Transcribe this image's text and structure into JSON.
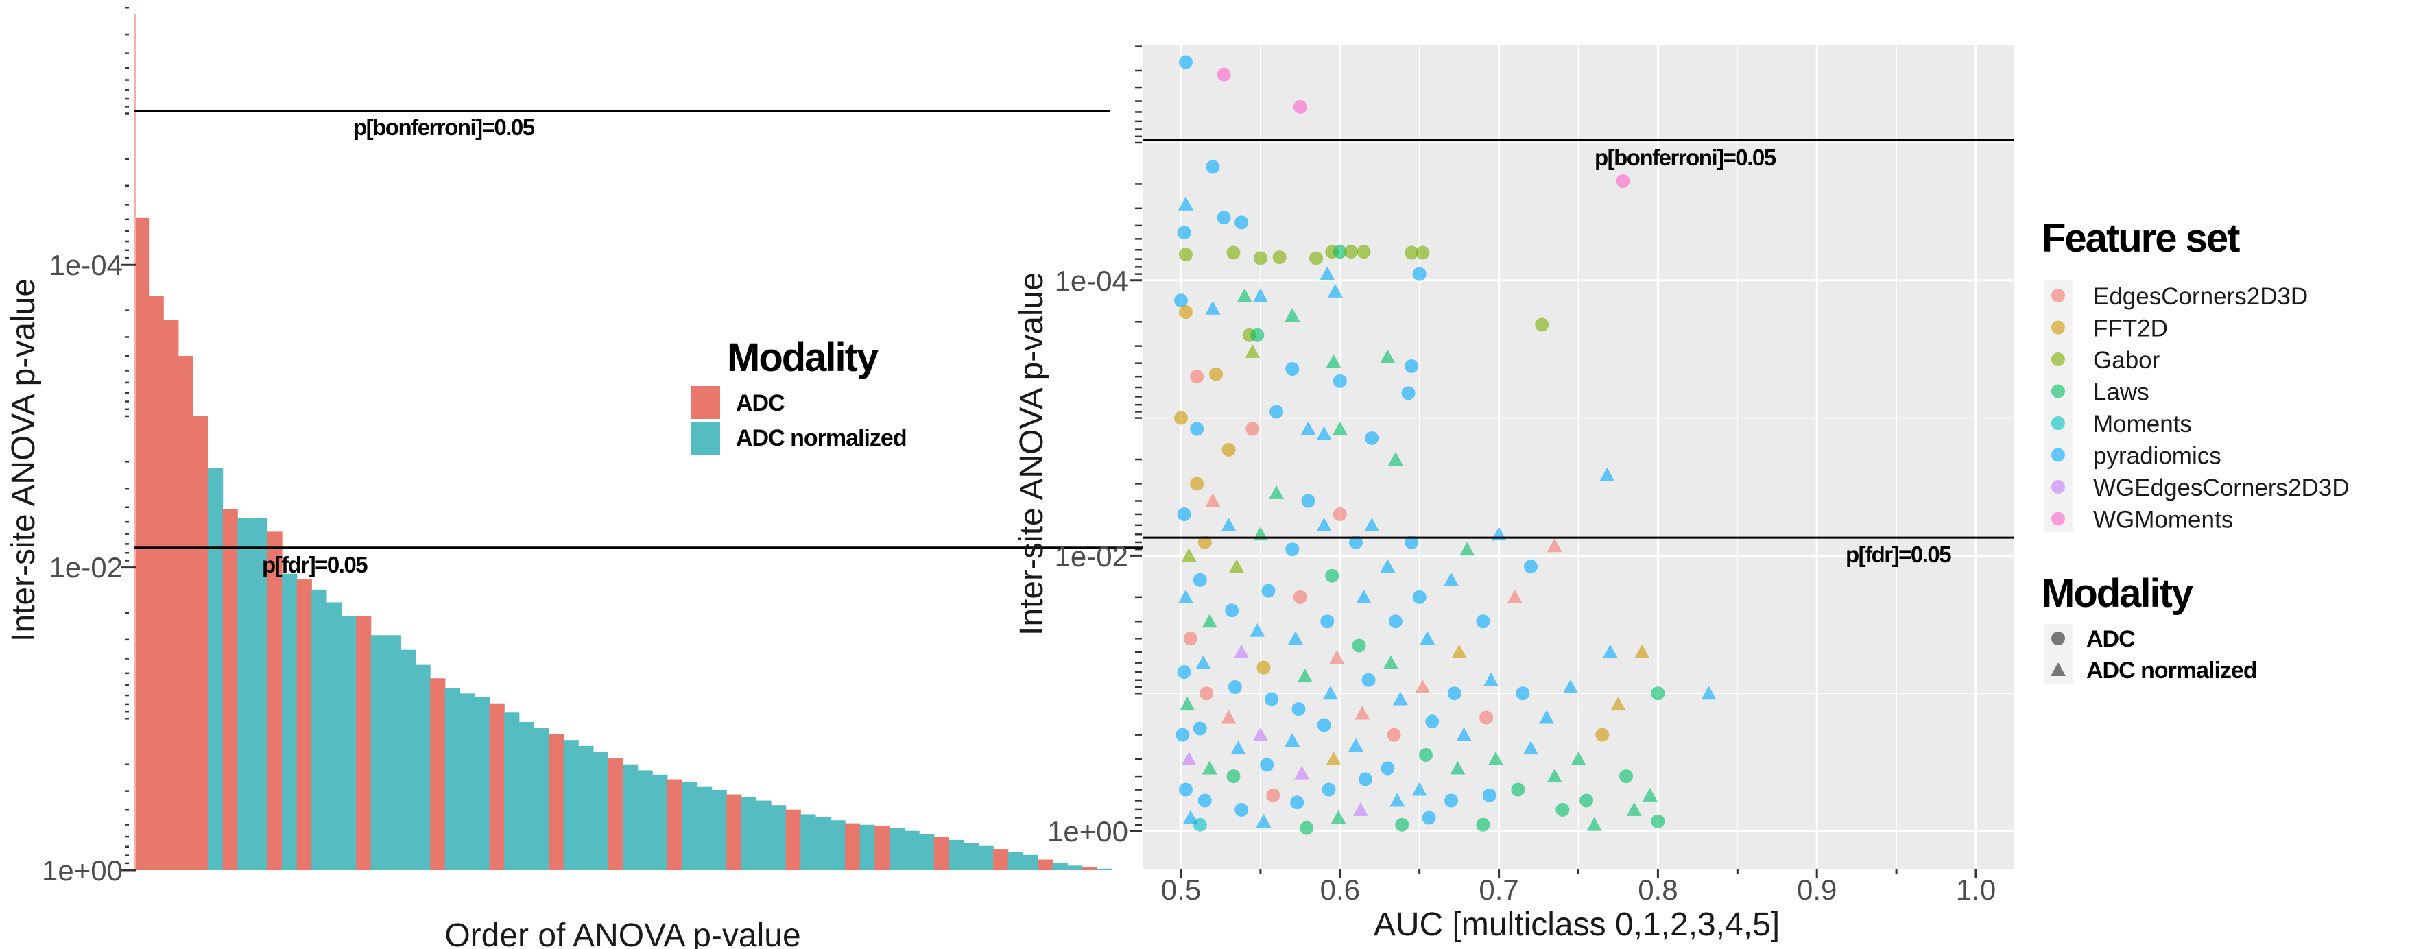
{
  "chart_data": [
    {
      "type": "bar",
      "xlabel": "Order of ANOVA p-value",
      "ylabel": "Inter-site ANOVA p-value",
      "y_scale": "reversed-log10",
      "ylim": [
        1.0,
        2e-06
      ],
      "y_ticks": [
        "1e-04",
        "1e-02",
        "1e+00"
      ],
      "y_tick_values": [
        0.0001,
        0.01,
        1
      ],
      "grid": false,
      "legend": {
        "title": "Modality",
        "placement": "center-right",
        "entries": [
          "ADC",
          "ADC normalized"
        ]
      },
      "colors": {
        "ADC": "#E8786C",
        "ADC normalized": "#55BDC2"
      },
      "reference_lines": [
        {
          "label": "p[bonferroni]=0.05",
          "p": 9.6e-06
        },
        {
          "label": "p[fdr]=0.05",
          "p": 0.0074
        }
      ],
      "bars": [
        [
          4.9e-05,
          0
        ],
        [
          0.00016,
          0
        ],
        [
          0.00023,
          0
        ],
        [
          0.0004,
          0
        ],
        [
          0.001,
          0
        ],
        [
          0.0022,
          1
        ],
        [
          0.0041,
          0
        ],
        [
          0.0047,
          1
        ],
        [
          0.0047,
          1
        ],
        [
          0.0058,
          0
        ],
        [
          0.011,
          1
        ],
        [
          0.012,
          0
        ],
        [
          0.014,
          1
        ],
        [
          0.017,
          1
        ],
        [
          0.021,
          1
        ],
        [
          0.021,
          0
        ],
        [
          0.028,
          1
        ],
        [
          0.028,
          1
        ],
        [
          0.035,
          1
        ],
        [
          0.044,
          1
        ],
        [
          0.054,
          0
        ],
        [
          0.063,
          1
        ],
        [
          0.068,
          1
        ],
        [
          0.072,
          1
        ],
        [
          0.079,
          0
        ],
        [
          0.091,
          1
        ],
        [
          0.105,
          1
        ],
        [
          0.115,
          1
        ],
        [
          0.126,
          0
        ],
        [
          0.138,
          1
        ],
        [
          0.151,
          1
        ],
        [
          0.166,
          1
        ],
        [
          0.182,
          0
        ],
        [
          0.2,
          1
        ],
        [
          0.219,
          1
        ],
        [
          0.234,
          1
        ],
        [
          0.251,
          0
        ],
        [
          0.263,
          1
        ],
        [
          0.282,
          1
        ],
        [
          0.295,
          1
        ],
        [
          0.316,
          0
        ],
        [
          0.331,
          1
        ],
        [
          0.347,
          1
        ],
        [
          0.372,
          1
        ],
        [
          0.398,
          0
        ],
        [
          0.427,
          1
        ],
        [
          0.447,
          1
        ],
        [
          0.468,
          1
        ],
        [
          0.49,
          0
        ],
        [
          0.501,
          1
        ],
        [
          0.513,
          0
        ],
        [
          0.525,
          1
        ],
        [
          0.55,
          1
        ],
        [
          0.575,
          1
        ],
        [
          0.603,
          0
        ],
        [
          0.631,
          1
        ],
        [
          0.661,
          1
        ],
        [
          0.692,
          1
        ],
        [
          0.724,
          0
        ],
        [
          0.759,
          1
        ],
        [
          0.794,
          1
        ],
        [
          0.851,
          0
        ],
        [
          0.891,
          1
        ],
        [
          0.933,
          1
        ],
        [
          0.955,
          0
        ],
        [
          0.977,
          1
        ]
      ]
    },
    {
      "type": "scatter",
      "xlabel": "AUC [multiclass 0,1,2,3,4,5]",
      "ylabel": "Inter-site ANOVA p-value",
      "x_ticks": [
        "0.5",
        "0.6",
        "0.7",
        "0.8",
        "0.9",
        "1.0"
      ],
      "x_tick_values": [
        0.5,
        0.6,
        0.7,
        0.8,
        0.9,
        1.0
      ],
      "xlim": [
        0.476,
        1.024
      ],
      "y_scale": "reversed-log10",
      "ylim": [
        1.86,
        1.95e-06
      ],
      "y_ticks": [
        "1e-04",
        "1e-02",
        "1e+00"
      ],
      "y_tick_values": [
        0.0001,
        0.01,
        1
      ],
      "grid": true,
      "reference_lines": [
        {
          "label": "p[bonferroni]=0.05",
          "p": 9.6e-06
        },
        {
          "label": "p[fdr]=0.05",
          "p": 0.0074
        }
      ],
      "legend_feature_set": {
        "title": "Feature set",
        "entries": [
          "EdgesCorners2D3D",
          "FFT2D",
          "Gabor",
          "Laws",
          "Moments",
          "pyradiomics",
          "WGEdgesCorners2D3D",
          "WGMoments"
        ],
        "colors": [
          "#F8766D",
          "#CD9600",
          "#7CAE00",
          "#00BE67",
          "#00BFC4",
          "#00A9FF",
          "#C77CFF",
          "#FF61CC"
        ]
      },
      "legend_modality": {
        "title": "Modality",
        "entries": [
          "ADC",
          "ADC normalized"
        ],
        "shapes": [
          "circle",
          "triangle"
        ]
      },
      "point_fields": [
        "auc",
        "p",
        "feature_set_index",
        "modality_index"
      ],
      "points": [
        [
          0.503,
          2.6e-06,
          5,
          0
        ],
        [
          0.527,
          3.2e-06,
          7,
          0
        ],
        [
          0.575,
          5.5e-06,
          7,
          0
        ],
        [
          0.52,
          1.5e-05,
          5,
          0
        ],
        [
          0.503,
          2.8e-05,
          5,
          1
        ],
        [
          0.502,
          4.5e-05,
          5,
          0
        ],
        [
          0.527,
          3.5e-05,
          5,
          0
        ],
        [
          0.538,
          3.8e-05,
          5,
          0
        ],
        [
          0.778,
          1.9e-05,
          7,
          0
        ],
        [
          0.503,
          6.5e-05,
          2,
          0
        ],
        [
          0.533,
          6.3e-05,
          2,
          0
        ],
        [
          0.55,
          6.9e-05,
          2,
          0
        ],
        [
          0.562,
          6.8e-05,
          2,
          0
        ],
        [
          0.585,
          6.9e-05,
          2,
          0
        ],
        [
          0.595,
          6.2e-05,
          2,
          0
        ],
        [
          0.6,
          6.2e-05,
          3,
          0
        ],
        [
          0.607,
          6.2e-05,
          2,
          0
        ],
        [
          0.615,
          6.2e-05,
          2,
          0
        ],
        [
          0.645,
          6.3e-05,
          2,
          0
        ],
        [
          0.652,
          6.3e-05,
          2,
          0
        ],
        [
          0.65,
          9e-05,
          5,
          0
        ],
        [
          0.592,
          9e-05,
          5,
          1
        ],
        [
          0.597,
          0.00012,
          5,
          1
        ],
        [
          0.727,
          0.00021,
          2,
          0
        ],
        [
          0.543,
          0.00025,
          2,
          0
        ],
        [
          0.548,
          0.00025,
          3,
          0
        ],
        [
          0.5,
          0.00014,
          5,
          0
        ],
        [
          0.503,
          0.00017,
          1,
          0
        ],
        [
          0.52,
          0.00016,
          5,
          1
        ],
        [
          0.54,
          0.00013,
          3,
          1
        ],
        [
          0.55,
          0.00013,
          5,
          1
        ],
        [
          0.57,
          0.00018,
          3,
          1
        ],
        [
          0.545,
          0.00033,
          2,
          1
        ],
        [
          0.596,
          0.00039,
          3,
          1
        ],
        [
          0.63,
          0.00036,
          3,
          1
        ],
        [
          0.645,
          0.00042,
          5,
          0
        ],
        [
          0.51,
          0.0005,
          0,
          0
        ],
        [
          0.522,
          0.00048,
          1,
          0
        ],
        [
          0.57,
          0.00044,
          5,
          0
        ],
        [
          0.6,
          0.00054,
          5,
          0
        ],
        [
          0.643,
          0.00066,
          5,
          0
        ],
        [
          0.768,
          0.0026,
          5,
          1
        ],
        [
          0.5,
          0.001,
          1,
          0
        ],
        [
          0.51,
          0.0012,
          5,
          0
        ],
        [
          0.53,
          0.0017,
          1,
          0
        ],
        [
          0.545,
          0.0012,
          0,
          0
        ],
        [
          0.56,
          0.0009,
          5,
          0
        ],
        [
          0.58,
          0.0012,
          5,
          1
        ],
        [
          0.59,
          0.0013,
          5,
          1
        ],
        [
          0.62,
          0.0014,
          5,
          0
        ],
        [
          0.6,
          0.0012,
          3,
          1
        ],
        [
          0.635,
          0.002,
          3,
          1
        ],
        [
          0.502,
          0.005,
          5,
          0
        ],
        [
          0.505,
          0.01,
          2,
          1
        ],
        [
          0.503,
          0.02,
          5,
          1
        ],
        [
          0.506,
          0.04,
          0,
          0
        ],
        [
          0.502,
          0.07,
          5,
          0
        ],
        [
          0.504,
          0.12,
          3,
          1
        ],
        [
          0.501,
          0.2,
          5,
          0
        ],
        [
          0.505,
          0.3,
          6,
          1
        ],
        [
          0.503,
          0.5,
          5,
          0
        ],
        [
          0.506,
          0.8,
          5,
          1
        ],
        [
          0.515,
          0.008,
          1,
          0
        ],
        [
          0.512,
          0.015,
          5,
          0
        ],
        [
          0.518,
          0.03,
          3,
          1
        ],
        [
          0.514,
          0.06,
          5,
          1
        ],
        [
          0.516,
          0.1,
          0,
          0
        ],
        [
          0.512,
          0.18,
          5,
          0
        ],
        [
          0.518,
          0.35,
          3,
          1
        ],
        [
          0.515,
          0.6,
          5,
          0
        ],
        [
          0.512,
          0.9,
          4,
          0
        ],
        [
          0.53,
          0.006,
          5,
          1
        ],
        [
          0.535,
          0.012,
          2,
          1
        ],
        [
          0.532,
          0.025,
          5,
          0
        ],
        [
          0.538,
          0.05,
          6,
          1
        ],
        [
          0.534,
          0.09,
          5,
          0
        ],
        [
          0.53,
          0.15,
          0,
          1
        ],
        [
          0.536,
          0.25,
          5,
          1
        ],
        [
          0.533,
          0.4,
          3,
          0
        ],
        [
          0.538,
          0.7,
          5,
          0
        ],
        [
          0.55,
          0.007,
          3,
          1
        ],
        [
          0.555,
          0.018,
          5,
          0
        ],
        [
          0.548,
          0.035,
          5,
          1
        ],
        [
          0.552,
          0.065,
          1,
          0
        ],
        [
          0.557,
          0.11,
          5,
          0
        ],
        [
          0.55,
          0.2,
          6,
          1
        ],
        [
          0.554,
          0.33,
          5,
          0
        ],
        [
          0.558,
          0.55,
          0,
          0
        ],
        [
          0.552,
          0.85,
          5,
          1
        ],
        [
          0.57,
          0.009,
          5,
          0
        ],
        [
          0.575,
          0.02,
          0,
          0
        ],
        [
          0.572,
          0.04,
          5,
          1
        ],
        [
          0.578,
          0.075,
          3,
          1
        ],
        [
          0.574,
          0.13,
          5,
          0
        ],
        [
          0.57,
          0.22,
          5,
          1
        ],
        [
          0.576,
          0.38,
          6,
          1
        ],
        [
          0.573,
          0.62,
          5,
          0
        ],
        [
          0.579,
          0.95,
          3,
          0
        ],
        [
          0.59,
          0.006,
          5,
          1
        ],
        [
          0.595,
          0.014,
          3,
          0
        ],
        [
          0.592,
          0.03,
          5,
          0
        ],
        [
          0.598,
          0.055,
          0,
          1
        ],
        [
          0.594,
          0.1,
          5,
          1
        ],
        [
          0.59,
          0.17,
          5,
          0
        ],
        [
          0.596,
          0.3,
          1,
          1
        ],
        [
          0.593,
          0.5,
          5,
          0
        ],
        [
          0.599,
          0.8,
          3,
          1
        ],
        [
          0.61,
          0.008,
          5,
          0
        ],
        [
          0.615,
          0.02,
          5,
          1
        ],
        [
          0.612,
          0.045,
          3,
          0
        ],
        [
          0.618,
          0.08,
          5,
          0
        ],
        [
          0.614,
          0.14,
          0,
          1
        ],
        [
          0.61,
          0.24,
          5,
          1
        ],
        [
          0.616,
          0.42,
          5,
          0
        ],
        [
          0.613,
          0.7,
          6,
          1
        ],
        [
          0.63,
          0.012,
          5,
          1
        ],
        [
          0.635,
          0.03,
          5,
          0
        ],
        [
          0.632,
          0.06,
          3,
          1
        ],
        [
          0.638,
          0.11,
          5,
          1
        ],
        [
          0.634,
          0.2,
          0,
          0
        ],
        [
          0.63,
          0.35,
          5,
          0
        ],
        [
          0.636,
          0.6,
          5,
          1
        ],
        [
          0.639,
          0.9,
          3,
          0
        ],
        [
          0.65,
          0.02,
          5,
          0
        ],
        [
          0.655,
          0.04,
          5,
          1
        ],
        [
          0.652,
          0.09,
          0,
          1
        ],
        [
          0.658,
          0.16,
          5,
          0
        ],
        [
          0.654,
          0.28,
          3,
          0
        ],
        [
          0.65,
          0.5,
          5,
          1
        ],
        [
          0.656,
          0.8,
          5,
          0
        ],
        [
          0.67,
          0.015,
          5,
          1
        ],
        [
          0.675,
          0.05,
          1,
          1
        ],
        [
          0.672,
          0.1,
          5,
          0
        ],
        [
          0.678,
          0.2,
          5,
          1
        ],
        [
          0.674,
          0.35,
          3,
          1
        ],
        [
          0.67,
          0.6,
          5,
          0
        ],
        [
          0.69,
          0.03,
          5,
          0
        ],
        [
          0.695,
          0.08,
          5,
          1
        ],
        [
          0.692,
          0.15,
          0,
          0
        ],
        [
          0.698,
          0.3,
          3,
          1
        ],
        [
          0.694,
          0.55,
          5,
          0
        ],
        [
          0.69,
          0.9,
          3,
          0
        ],
        [
          0.71,
          0.02,
          0,
          1
        ],
        [
          0.715,
          0.1,
          5,
          0
        ],
        [
          0.72,
          0.25,
          5,
          1
        ],
        [
          0.712,
          0.5,
          3,
          0
        ],
        [
          0.73,
          0.15,
          5,
          1
        ],
        [
          0.735,
          0.4,
          3,
          1
        ],
        [
          0.74,
          0.7,
          3,
          0
        ],
        [
          0.745,
          0.09,
          5,
          1
        ],
        [
          0.75,
          0.3,
          3,
          1
        ],
        [
          0.755,
          0.6,
          3,
          0
        ],
        [
          0.76,
          0.9,
          3,
          1
        ],
        [
          0.77,
          0.05,
          5,
          1
        ],
        [
          0.775,
          0.12,
          1,
          1
        ],
        [
          0.78,
          0.4,
          3,
          0
        ],
        [
          0.785,
          0.7,
          3,
          1
        ],
        [
          0.79,
          0.05,
          1,
          1
        ],
        [
          0.8,
          0.1,
          3,
          0
        ],
        [
          0.795,
          0.55,
          3,
          1
        ],
        [
          0.8,
          0.85,
          3,
          0
        ],
        [
          0.832,
          0.1,
          5,
          1
        ],
        [
          0.765,
          0.2,
          1,
          0
        ],
        [
          0.51,
          0.003,
          1,
          0
        ],
        [
          0.52,
          0.004,
          0,
          1
        ],
        [
          0.56,
          0.0035,
          3,
          1
        ],
        [
          0.58,
          0.004,
          5,
          0
        ],
        [
          0.6,
          0.005,
          0,
          0
        ],
        [
          0.62,
          0.006,
          5,
          1
        ],
        [
          0.645,
          0.008,
          5,
          0
        ],
        [
          0.68,
          0.009,
          3,
          1
        ],
        [
          0.7,
          0.007,
          5,
          1
        ],
        [
          0.72,
          0.012,
          5,
          0
        ],
        [
          0.735,
          0.0085,
          0,
          1
        ]
      ]
    }
  ]
}
